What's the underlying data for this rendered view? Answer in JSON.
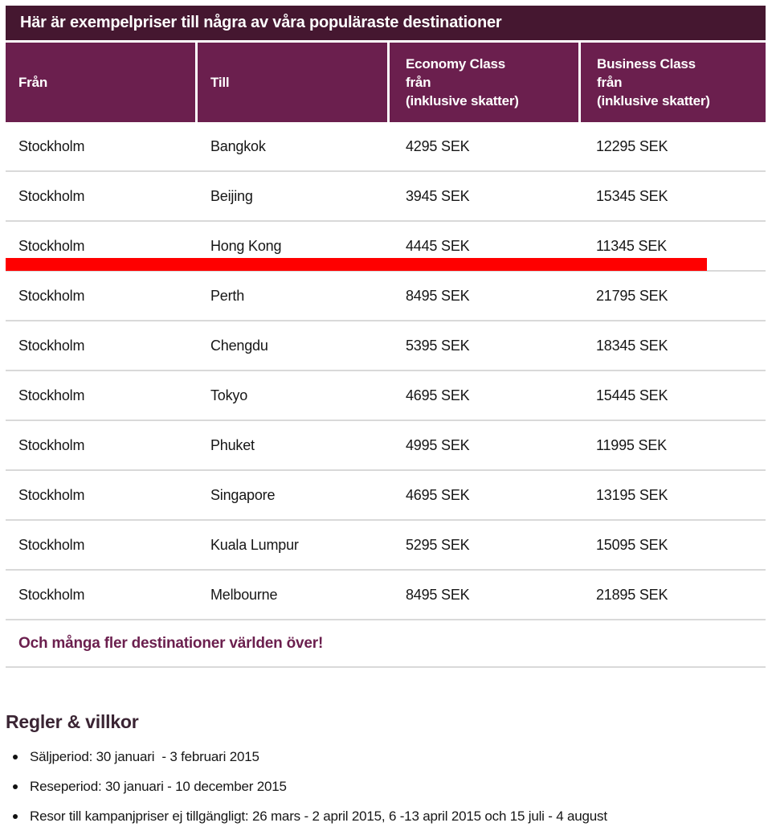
{
  "colors": {
    "title_bar_background": "#451730",
    "header_background": "#6B1F4E",
    "highlight_bar": "#FE0000",
    "separator": "#D9D9D9"
  },
  "table": {
    "title": "Här är exempelpriser till några av våra populäraste destinationer",
    "columns": {
      "from": "Från",
      "to": "Till",
      "economy": "Economy Class\nfrån\n(inklusive skatter)",
      "business": "Business Class\nfrån\n(inklusive skatter)"
    },
    "rows": [
      {
        "from": "Stockholm",
        "to": "Bangkok",
        "economy": "4295 SEK",
        "business": "12295 SEK"
      },
      {
        "from": "Stockholm",
        "to": "Beijing",
        "economy": "3945 SEK",
        "business": "15345 SEK"
      },
      {
        "from": "Stockholm",
        "to": "Hong Kong",
        "economy": "4445 SEK",
        "business": "11345 SEK"
      },
      {
        "from": "Stockholm",
        "to": "Perth",
        "economy": "8495 SEK",
        "business": "21795 SEK"
      },
      {
        "from": "Stockholm",
        "to": "Chengdu",
        "economy": "5395 SEK",
        "business": "18345 SEK"
      },
      {
        "from": "Stockholm",
        "to": "Tokyo",
        "economy": "4695 SEK",
        "business": "15445 SEK"
      },
      {
        "from": "Stockholm",
        "to": "Phuket",
        "economy": "4995 SEK",
        "business": "11995 SEK"
      },
      {
        "from": "Stockholm",
        "to": "Singapore",
        "economy": "4695 SEK",
        "business": "13195 SEK"
      },
      {
        "from": "Stockholm",
        "to": "Kuala Lumpur",
        "economy": "5295 SEK",
        "business": "15095 SEK"
      },
      {
        "from": "Stockholm",
        "to": "Melbourne",
        "economy": "8495 SEK",
        "business": "21895 SEK"
      }
    ],
    "note": "Och många fler destinationer världen över!"
  },
  "rules": {
    "heading": "Regler & villkor",
    "items": [
      "Säljperiod: 30 januari  - 3 februari 2015",
      "Reseperiod: 30 januari - 10 december 2015",
      "Resor till kampanjpriser ej tillgängligt: 26 mars - 2 april 2015, 6 -13 april 2015 och 15 juli - 4 august"
    ]
  }
}
